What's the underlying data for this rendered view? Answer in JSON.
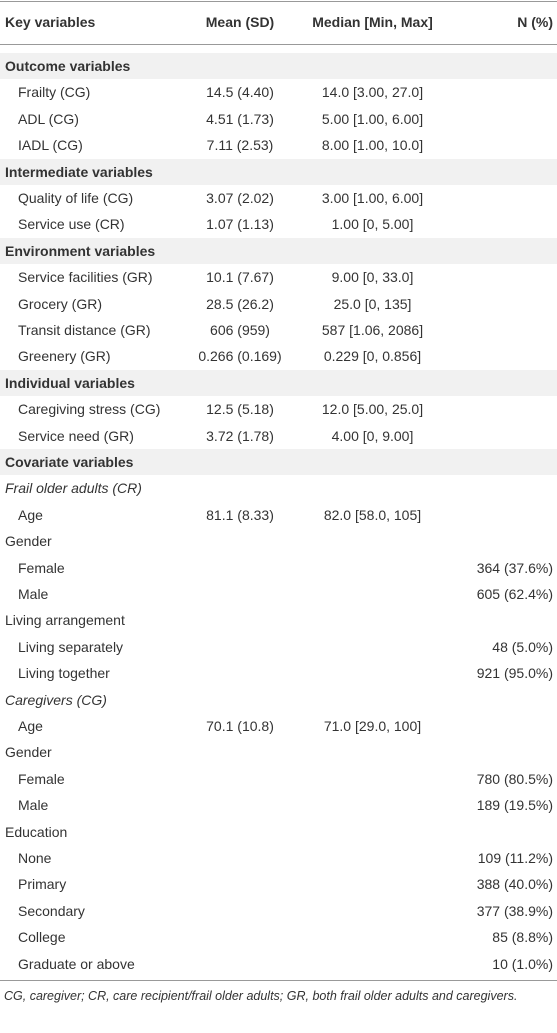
{
  "table": {
    "header": [
      "Key variables",
      "Mean (SD)",
      "Median [Min, Max]",
      "N (%)"
    ],
    "rows": [
      {
        "style": "section",
        "label": "Outcome variables"
      },
      {
        "style": "item",
        "label": "Frailty (CG)",
        "mean": "14.5 (4.40)",
        "median": "14.0 [3.00, 27.0]"
      },
      {
        "style": "item",
        "label": "ADL (CG)",
        "mean": "4.51 (1.73)",
        "median": "5.00 [1.00, 6.00]"
      },
      {
        "style": "item",
        "label": "IADL (CG)",
        "mean": "7.11 (2.53)",
        "median": "8.00 [1.00, 10.0]"
      },
      {
        "style": "section",
        "label": "Intermediate variables"
      },
      {
        "style": "item",
        "label": "Quality of life (CG)",
        "mean": "3.07 (2.02)",
        "median": "3.00 [1.00, 6.00]"
      },
      {
        "style": "item",
        "label": "Service use (CR)",
        "mean": "1.07 (1.13)",
        "median": "1.00 [0, 5.00]"
      },
      {
        "style": "section",
        "label": "Environment variables"
      },
      {
        "style": "item",
        "label": "Service facilities (GR)",
        "mean": "10.1 (7.67)",
        "median": "9.00 [0, 33.0]"
      },
      {
        "style": "item",
        "label": "Grocery (GR)",
        "mean": "28.5 (26.2)",
        "median": "25.0 [0, 135]"
      },
      {
        "style": "item",
        "label": "Transit distance (GR)",
        "mean": "606 (959)",
        "median": "587 [1.06, 2086]"
      },
      {
        "style": "item",
        "label": "Greenery (GR)",
        "mean": "0.266 (0.169)",
        "median": "0.229 [0, 0.856]"
      },
      {
        "style": "section",
        "label": "Individual variables"
      },
      {
        "style": "item",
        "label": "Caregiving stress (CG)",
        "mean": "12.5 (5.18)",
        "median": "12.0 [5.00, 25.0]"
      },
      {
        "style": "item",
        "label": "Service need (GR)",
        "mean": "3.72 (1.78)",
        "median": "4.00 [0, 9.00]"
      },
      {
        "style": "section",
        "label": "Covariate variables"
      },
      {
        "style": "subhead",
        "label": "Frail older adults (CR)"
      },
      {
        "style": "item",
        "label": "Age",
        "mean": "81.1 (8.33)",
        "median": "82.0 [58.0, 105]"
      },
      {
        "style": "group",
        "label": "Gender"
      },
      {
        "style": "item",
        "label": "Female",
        "n": "364 (37.6%)"
      },
      {
        "style": "item",
        "label": "Male",
        "n": "605 (62.4%)"
      },
      {
        "style": "group",
        "label": "Living arrangement"
      },
      {
        "style": "item",
        "label": "Living separately",
        "n": "48 (5.0%)"
      },
      {
        "style": "item",
        "label": "Living together",
        "n": "921 (95.0%)"
      },
      {
        "style": "subhead",
        "label": "Caregivers (CG)"
      },
      {
        "style": "item",
        "label": "Age",
        "mean": "70.1 (10.8)",
        "median": "71.0 [29.0, 100]"
      },
      {
        "style": "group",
        "label": "Gender"
      },
      {
        "style": "item",
        "label": "Female",
        "n": "780 (80.5%)"
      },
      {
        "style": "item",
        "label": "Male",
        "n": "189 (19.5%)"
      },
      {
        "style": "group",
        "label": "Education"
      },
      {
        "style": "item",
        "label": "None",
        "n": "109 (11.2%)"
      },
      {
        "style": "item",
        "label": "Primary",
        "n": "388 (40.0%)"
      },
      {
        "style": "item",
        "label": "Secondary",
        "n": "377 (38.9%)"
      },
      {
        "style": "item",
        "label": "College",
        "n": "85 (8.8%)"
      },
      {
        "style": "item",
        "label": "Graduate or above",
        "n": "10 (1.0%)"
      }
    ]
  },
  "footnote": "CG, caregiver; CR, care recipient/frail older adults; GR, both frail older adults and caregivers."
}
